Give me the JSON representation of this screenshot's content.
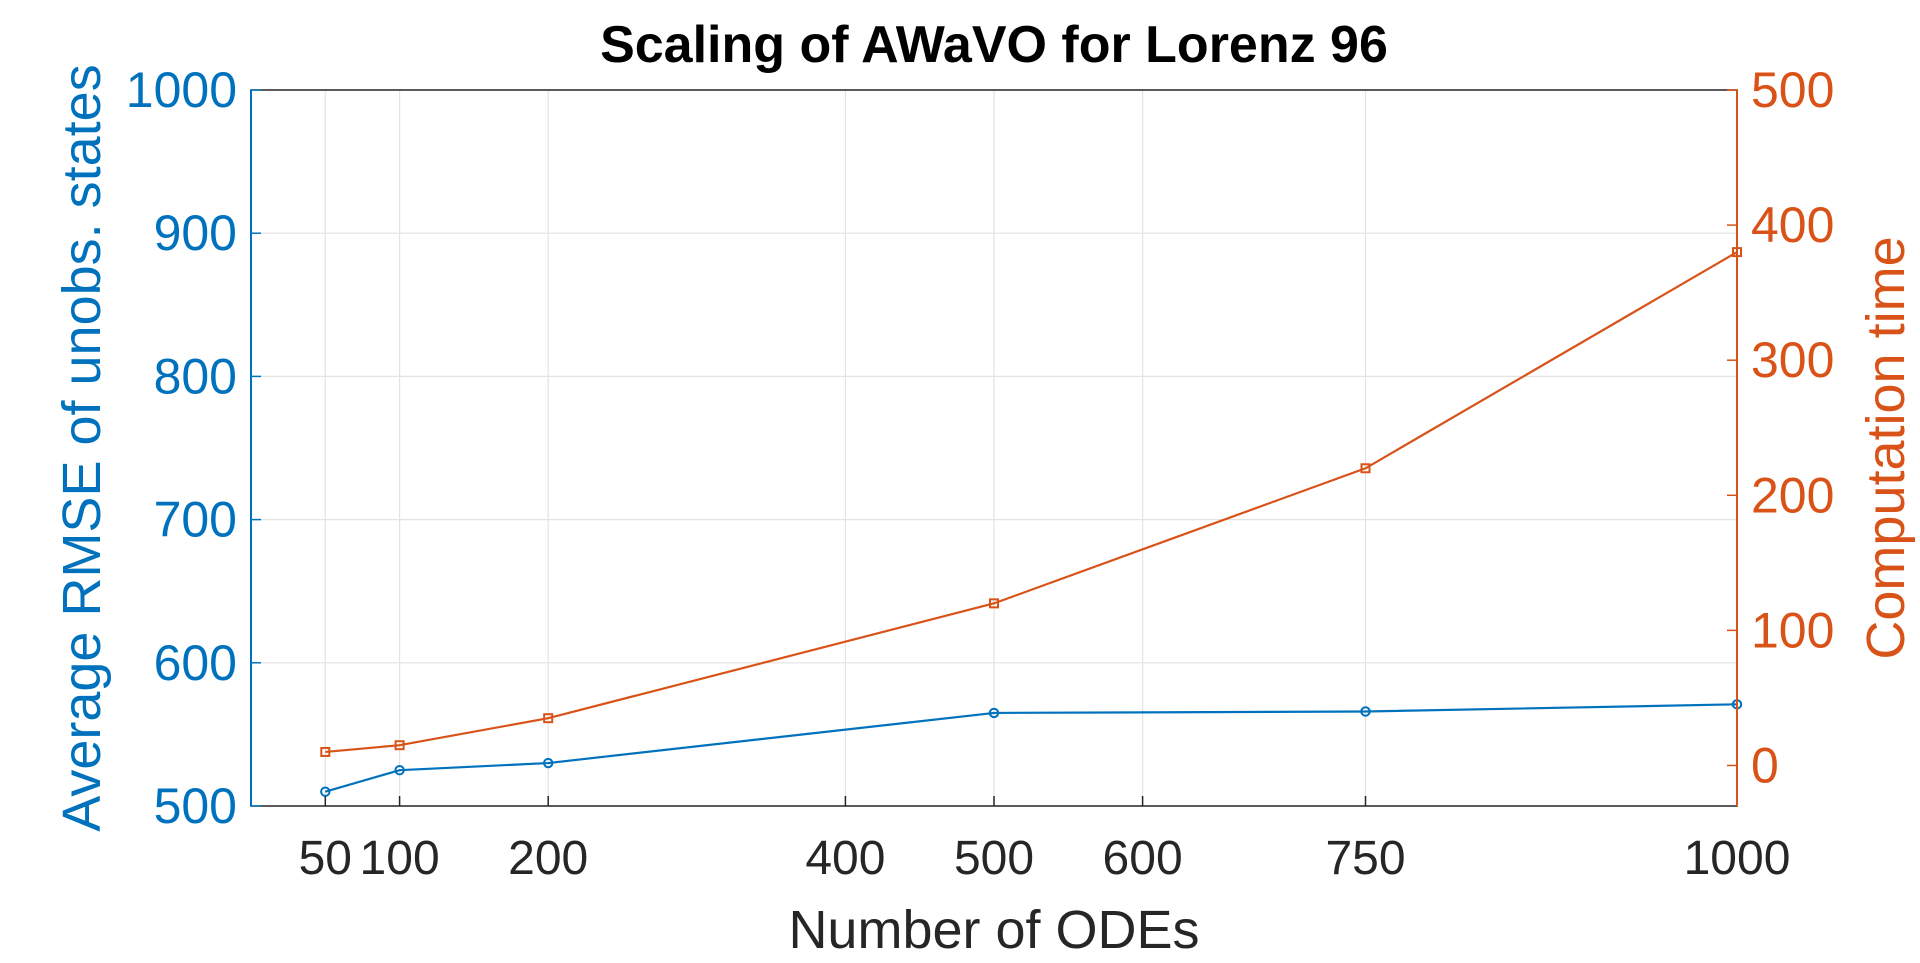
{
  "chart_data": {
    "type": "line",
    "title": "Scaling of AWaVO for Lorenz 96",
    "xlabel": "Number of ODEs",
    "x": [
      50,
      100,
      200,
      500,
      750,
      1000
    ],
    "xlim": [
      0,
      1000
    ],
    "xticks": [
      50,
      100,
      200,
      400,
      500,
      600,
      750,
      1000
    ],
    "grid": true,
    "left_axis": {
      "label": "Average RMSE of unobs. states",
      "ylim": [
        500,
        1000
      ],
      "ticks": [
        500,
        600,
        700,
        800,
        900,
        1000
      ],
      "color": "#0072BD"
    },
    "right_axis": {
      "label": "Computation time",
      "ylim": [
        -30,
        500
      ],
      "ticks": [
        0,
        100,
        200,
        300,
        400,
        500
      ],
      "color": "#D95319"
    },
    "series": [
      {
        "name": "Average RMSE of unobs. states",
        "axis": "left",
        "marker": "circle",
        "color": "#0072BD",
        "values": [
          510,
          525,
          530,
          565,
          566,
          571
        ]
      },
      {
        "name": "Computation time",
        "axis": "right",
        "marker": "square",
        "color": "#D95319",
        "values": [
          10,
          15,
          35,
          120,
          220,
          380
        ]
      }
    ]
  }
}
